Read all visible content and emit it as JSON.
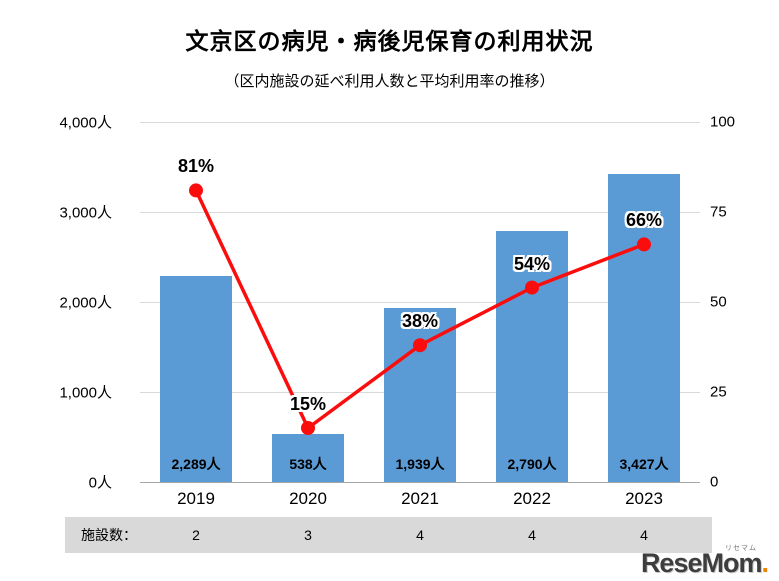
{
  "title": "文京区の病児・病後児保育の利用状況",
  "subtitle": "（区内施設の延べ利用人数と平均利用率の推移）",
  "chart_data": {
    "type": "bar",
    "subtype": "bar+line combo",
    "categories": [
      "2019",
      "2020",
      "2021",
      "2022",
      "2023"
    ],
    "series": [
      {
        "name": "延べ利用人数",
        "type": "bar",
        "axis": "left",
        "values": [
          2289,
          538,
          1939,
          2790,
          3427
        ],
        "labels": [
          "2,289人",
          "538人",
          "1,939人",
          "2,790人",
          "3,427人"
        ],
        "color": "#5b9bd5"
      },
      {
        "name": "平均利用率",
        "type": "line",
        "axis": "right",
        "values": [
          81,
          15,
          38,
          54,
          66
        ],
        "labels": [
          "81%",
          "15%",
          "38%",
          "54%",
          "66%"
        ],
        "color": "#fb0d0d"
      }
    ],
    "left_axis": {
      "min": 0,
      "max": 4000,
      "ticks": [
        "4,000人",
        "3,000人",
        "2,000人",
        "1,000人",
        "0人"
      ]
    },
    "right_axis": {
      "min": 0,
      "max": 100,
      "ticks": [
        "100",
        "75",
        "50",
        "25",
        "0"
      ]
    },
    "grid": true,
    "legend": "none"
  },
  "facility_row": {
    "label": "施設数：",
    "values": [
      "2",
      "3",
      "4",
      "4",
      "4"
    ]
  },
  "logo": {
    "text": "ReseMom",
    "dot": ".",
    "furigana": "リセマム"
  },
  "colors": {
    "bar": "#5b9bd5",
    "line": "#fb0d0d",
    "gridline": "#d9d9d9",
    "facility_band": "#d9d9d9"
  }
}
